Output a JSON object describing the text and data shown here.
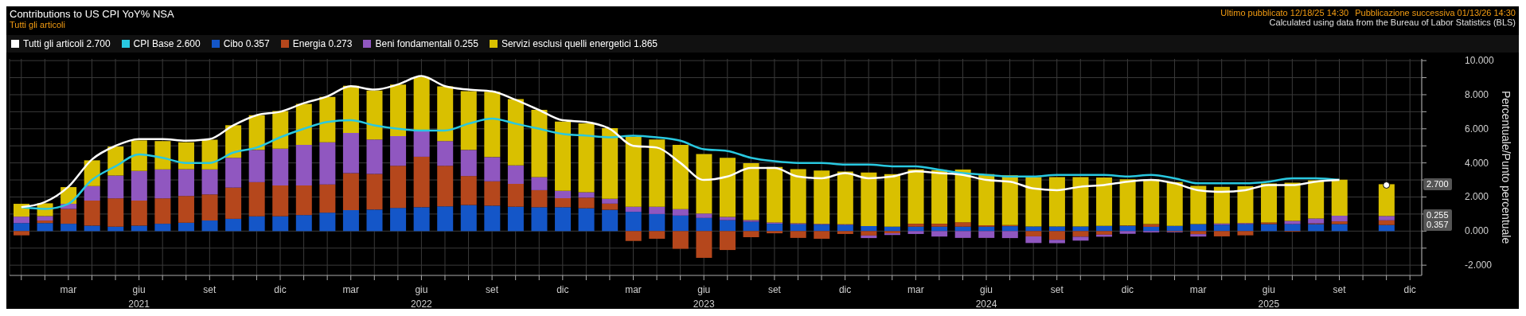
{
  "chart_data": {
    "type": "bar",
    "title": "Contributions to US CPI YoY% NSA",
    "subtitle": "Tutti gli articoli",
    "ylabel": "Percentuale/Punto percentuale",
    "annotations": [
      "Ultimo pubblicato 12/18/25 14:30",
      "Pubblicazione successiva 01/13/26 14:30",
      "Calculated using data from the Bureau of Labor Statistics (BLS)",
      {
        "text": "2.700",
        "y": 2.7
      },
      {
        "text": "0.255",
        "y": 0.885
      },
      {
        "text": "0.357",
        "y": 0.357
      }
    ],
    "categories": [
      null,
      null,
      "mar",
      null,
      null,
      "giu\n2021",
      null,
      null,
      "set",
      null,
      null,
      "dic",
      null,
      null,
      "mar",
      null,
      null,
      "giu\n2022",
      null,
      null,
      "set",
      null,
      null,
      "dic",
      null,
      null,
      "mar",
      null,
      null,
      "giu\n2023",
      null,
      null,
      "set",
      null,
      null,
      "dic",
      null,
      null,
      "mar",
      null,
      null,
      "giu\n2024",
      null,
      null,
      "set",
      null,
      null,
      "dic",
      null,
      null,
      "mar",
      null,
      null,
      "giu\n2025",
      null,
      null,
      "set",
      null,
      null,
      "dic"
    ],
    "stacked": true,
    "series": [
      {
        "name": "Cibo 0.357",
        "color": "#1456c8",
        "values": [
          0.47,
          0.47,
          0.43,
          0.32,
          0.26,
          0.32,
          0.43,
          0.49,
          0.62,
          0.72,
          0.87,
          0.87,
          0.94,
          1.08,
          1.23,
          1.26,
          1.36,
          1.4,
          1.45,
          1.53,
          1.49,
          1.43,
          1.4,
          1.4,
          1.34,
          1.25,
          1.13,
          1.0,
          0.91,
          0.77,
          0.64,
          0.55,
          0.43,
          0.4,
          0.38,
          0.36,
          0.3,
          0.26,
          0.26,
          0.26,
          0.26,
          0.26,
          0.29,
          0.27,
          0.27,
          0.27,
          0.31,
          0.31,
          0.25,
          0.31,
          0.41,
          0.37,
          0.41,
          0.41,
          0.41,
          0.41,
          0.41,
          null,
          0.357,
          null
        ]
      },
      {
        "name": "Energia 0.273",
        "color": "#b5471c",
        "values": [
          -0.25,
          0.15,
          0.87,
          1.47,
          1.66,
          1.47,
          1.49,
          1.57,
          1.53,
          1.83,
          2.0,
          1.81,
          1.74,
          1.66,
          2.17,
          2.09,
          2.47,
          2.96,
          2.38,
          1.7,
          1.43,
          1.34,
          1.0,
          0.53,
          0.62,
          0.36,
          -0.58,
          -0.45,
          -1.04,
          -1.57,
          -1.11,
          -0.36,
          -0.13,
          -0.4,
          -0.45,
          -0.17,
          -0.26,
          -0.13,
          0.17,
          0.17,
          0.26,
          0.08,
          0.06,
          -0.31,
          -0.51,
          -0.33,
          -0.21,
          0.02,
          0.16,
          -0.04,
          -0.18,
          -0.31,
          -0.25,
          0.1,
          -0.04,
          0.04,
          0.16,
          null,
          0.273,
          null
        ]
      },
      {
        "name": "Beni fondamentali 0.255",
        "color": "#9057c0",
        "values": [
          0.38,
          0.26,
          0.3,
          0.85,
          1.34,
          1.74,
          1.7,
          1.57,
          1.47,
          1.75,
          1.89,
          2.15,
          2.38,
          2.47,
          2.36,
          2.02,
          1.74,
          1.51,
          1.45,
          1.53,
          1.42,
          1.08,
          0.77,
          0.43,
          0.32,
          0.28,
          0.3,
          0.43,
          0.38,
          0.26,
          0.19,
          0.09,
          0.08,
          0.06,
          0.04,
          0.04,
          -0.15,
          -0.1,
          -0.17,
          -0.32,
          -0.4,
          -0.4,
          -0.41,
          -0.39,
          -0.2,
          -0.23,
          -0.12,
          -0.16,
          -0.08,
          -0.04,
          -0.14,
          0.08,
          0.06,
          null,
          0.19,
          0.29,
          0.33,
          null,
          0.255,
          null
        ]
      },
      {
        "name": "Servizi esclusi quelli energetici 1.865",
        "color": "#d9c000",
        "values": [
          0.75,
          0.75,
          0.98,
          1.51,
          1.7,
          1.79,
          1.66,
          1.58,
          1.74,
          1.91,
          2.04,
          2.21,
          2.4,
          2.66,
          2.77,
          2.87,
          3.02,
          3.17,
          3.21,
          3.45,
          3.83,
          3.89,
          3.94,
          4.06,
          4.04,
          4.15,
          4.09,
          3.94,
          3.77,
          3.49,
          3.47,
          3.34,
          3.25,
          3.17,
          3.13,
          3.09,
          3.13,
          3.08,
          3.19,
          3.15,
          3.09,
          3.0,
          2.92,
          2.9,
          2.9,
          2.9,
          2.83,
          2.71,
          2.63,
          2.57,
          2.24,
          2.14,
          2.16,
          2.28,
          2.24,
          2.24,
          2.12,
          null,
          1.865,
          null
        ]
      },
      {
        "name": "Tutti gli articoli 2.700",
        "type": "line",
        "color": "#ffffff",
        "values": [
          1.4,
          1.7,
          2.6,
          4.2,
          5.0,
          5.4,
          5.4,
          5.3,
          5.4,
          6.2,
          6.8,
          7.0,
          7.5,
          7.9,
          8.5,
          8.3,
          8.6,
          9.1,
          8.5,
          8.3,
          8.2,
          7.7,
          7.1,
          6.5,
          6.4,
          6.0,
          5.0,
          4.9,
          4.0,
          3.0,
          3.2,
          3.7,
          3.7,
          3.2,
          3.1,
          3.4,
          3.1,
          3.2,
          3.5,
          3.4,
          3.3,
          3.0,
          2.9,
          2.5,
          2.4,
          2.6,
          2.7,
          2.9,
          3.0,
          2.8,
          2.4,
          2.3,
          2.4,
          2.7,
          2.7,
          2.9,
          3.0,
          null,
          2.7,
          null
        ]
      },
      {
        "name": "CPI Base 2.600",
        "type": "line",
        "color": "#29c8e0",
        "values": [
          1.4,
          1.3,
          1.6,
          3.0,
          3.8,
          4.5,
          4.3,
          4.0,
          4.0,
          4.6,
          4.9,
          5.5,
          6.0,
          6.4,
          6.5,
          6.2,
          6.0,
          5.9,
          5.9,
          6.3,
          6.6,
          6.3,
          6.0,
          5.7,
          5.6,
          5.5,
          5.6,
          5.5,
          5.3,
          4.8,
          4.7,
          4.3,
          4.1,
          4.0,
          4.0,
          3.9,
          3.9,
          3.8,
          3.8,
          3.6,
          3.4,
          3.3,
          3.2,
          3.2,
          3.3,
          3.3,
          3.3,
          3.2,
          3.3,
          3.1,
          2.8,
          2.8,
          2.8,
          2.9,
          3.1,
          3.1,
          3.0,
          null,
          null,
          null
        ]
      }
    ],
    "ylim": [
      -2.6,
      10.1
    ],
    "yticks": [
      {
        "value": -2,
        "label": "-2.000"
      },
      {
        "value": -1,
        "label": null
      },
      {
        "value": 0,
        "label": "0.000"
      },
      {
        "value": 1,
        "label": null
      },
      {
        "value": 2,
        "label": "2.000"
      },
      {
        "value": 3,
        "label": null
      },
      {
        "value": 4,
        "label": "4.000"
      },
      {
        "value": 5,
        "label": null
      },
      {
        "value": 6,
        "label": "6.000"
      },
      {
        "value": 7,
        "label": null
      },
      {
        "value": 8,
        "label": "8.000"
      },
      {
        "value": 9,
        "label": null
      },
      {
        "value": 10,
        "label": "10.000"
      }
    ],
    "grid": true,
    "legend": "top left",
    "marker": "none"
  }
}
